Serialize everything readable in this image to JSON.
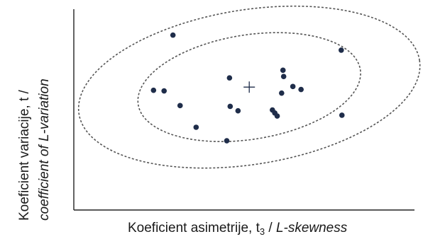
{
  "chart_data": {
    "type": "scatter",
    "title": "",
    "xlabel": {
      "prefix": "Koeficient asimetrije, t",
      "subscript": "3",
      "separator": " / ",
      "italic": "L-skewness"
    },
    "ylabel": {
      "line1": "Koeficient variacije, t /",
      "line2_italic": "coefficient of L-variation"
    },
    "xlim": [
      0,
      1
    ],
    "ylim": [
      0,
      1
    ],
    "ticks": "none",
    "grid": false,
    "legend": "none",
    "point_color": "#1f2d4a",
    "ellipse_color": "#555555",
    "center_marker": {
      "x": 0.515,
      "y": 0.612
    },
    "ellipses": [
      {
        "cx": 0.515,
        "cy": 0.612,
        "rx": 0.33,
        "ry": 0.26,
        "rotation_deg": -9
      },
      {
        "cx": 0.515,
        "cy": 0.612,
        "rx": 0.506,
        "ry": 0.385,
        "rotation_deg": -9
      }
    ],
    "points": [
      {
        "x": 0.291,
        "y": 0.871
      },
      {
        "x": 0.785,
        "y": 0.796
      },
      {
        "x": 0.614,
        "y": 0.696
      },
      {
        "x": 0.616,
        "y": 0.665
      },
      {
        "x": 0.457,
        "y": 0.658
      },
      {
        "x": 0.643,
        "y": 0.615
      },
      {
        "x": 0.667,
        "y": 0.6
      },
      {
        "x": 0.234,
        "y": 0.596
      },
      {
        "x": 0.265,
        "y": 0.593
      },
      {
        "x": 0.61,
        "y": 0.582
      },
      {
        "x": 0.312,
        "y": 0.52
      },
      {
        "x": 0.459,
        "y": 0.516
      },
      {
        "x": 0.482,
        "y": 0.494
      },
      {
        "x": 0.583,
        "y": 0.498
      },
      {
        "x": 0.59,
        "y": 0.483
      },
      {
        "x": 0.597,
        "y": 0.468
      },
      {
        "x": 0.787,
        "y": 0.472
      },
      {
        "x": 0.359,
        "y": 0.412
      },
      {
        "x": 0.449,
        "y": 0.345
      }
    ]
  }
}
